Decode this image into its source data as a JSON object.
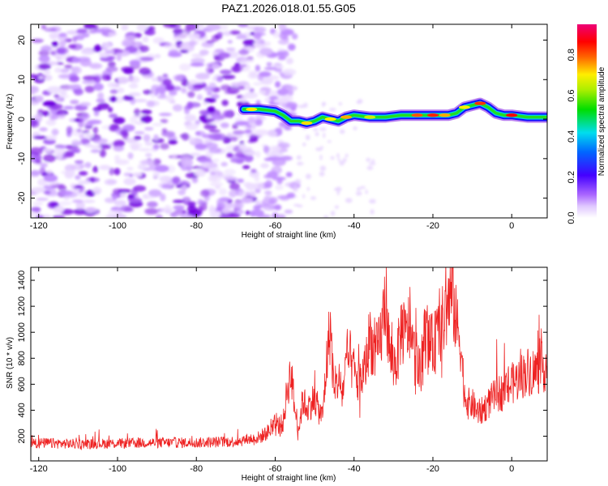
{
  "chart_data": [
    {
      "type": "heatmap",
      "title": "PAZ1.2026.018.01.55.G05",
      "xlabel": "Height of straight line (km)",
      "ylabel": "Frequency (Hz)",
      "xlim": [
        -122,
        9
      ],
      "ylim": [
        -25,
        24
      ],
      "x_ticks": [
        -120,
        -100,
        -80,
        -60,
        -40,
        -20,
        0
      ],
      "y_ticks": [
        -20,
        -10,
        0,
        10,
        20
      ],
      "colorbar": {
        "label": "Normalized spectral amplitude",
        "range": [
          0,
          0.95
        ],
        "ticks": [
          0.0,
          0.2,
          0.4,
          0.6,
          0.8
        ],
        "colors": [
          "#ffffff",
          "#cc99ff",
          "#7700ee",
          "#0000ff",
          "#00ccff",
          "#00dd00",
          "#ffff00",
          "#ff6600",
          "#ff0000",
          "#ee0066"
        ]
      },
      "ridge_frequency": {
        "x": [
          -68,
          -64,
          -60,
          -58,
          -56,
          -54,
          -52,
          -50,
          -48,
          -46,
          -44,
          -42,
          -40,
          -36,
          -32,
          -28,
          -24,
          -20,
          -16,
          -14,
          -12,
          -10,
          -8,
          -6,
          -4,
          -2,
          0,
          4,
          9
        ],
        "freq_hz": [
          2.5,
          2.5,
          2.0,
          1.0,
          -0.5,
          -0.5,
          -1.0,
          -0.5,
          0.5,
          0.0,
          -0.5,
          0.5,
          1.0,
          0.5,
          0.5,
          1.0,
          1.0,
          1.0,
          1.0,
          1.5,
          3.0,
          3.5,
          4.0,
          3.0,
          1.5,
          1.0,
          1.0,
          0.5,
          0.5
        ]
      },
      "noise_region_x": [
        -122,
        -55
      ]
    },
    {
      "type": "line",
      "xlabel": "Height of straight line (km)",
      "ylabel": "SNR (10 * v/v)",
      "xlim": [
        -122,
        9
      ],
      "ylim": [
        10,
        1500
      ],
      "x_ticks": [
        -120,
        -100,
        -80,
        -60,
        -40,
        -20,
        0
      ],
      "y_ticks": [
        200,
        400,
        600,
        800,
        1000,
        1200,
        1400
      ],
      "series": [
        {
          "name": "SNR",
          "color": "#ee2222",
          "x": [
            -122,
            -110,
            -100,
            -90,
            -80,
            -70,
            -64,
            -62,
            -60,
            -58,
            -57,
            -56,
            -55,
            -54,
            -53,
            -52,
            -51,
            -50,
            -49,
            -48,
            -47,
            -46,
            -45,
            -44,
            -43,
            -42,
            -41,
            -40,
            -39,
            -38,
            -37,
            -36,
            -35,
            -34,
            -33,
            -32,
            -31,
            -30,
            -29,
            -28,
            -27,
            -26,
            -25,
            -24,
            -23,
            -22,
            -21,
            -20,
            -19,
            -18,
            -17,
            -16,
            -15,
            -14,
            -13,
            -12,
            -11,
            -10,
            -9,
            -8,
            -6,
            -4,
            -2,
            0,
            2,
            4,
            6,
            9
          ],
          "values": [
            150,
            140,
            145,
            150,
            150,
            160,
            190,
            230,
            270,
            300,
            550,
            700,
            400,
            260,
            480,
            420,
            450,
            500,
            400,
            350,
            750,
            1050,
            500,
            650,
            520,
            750,
            800,
            700,
            600,
            650,
            750,
            980,
            850,
            850,
            1000,
            1300,
            850,
            750,
            800,
            1050,
            950,
            1050,
            850,
            750,
            650,
            1000,
            900,
            900,
            950,
            1050,
            1100,
            1250,
            1300,
            1050,
            950,
            520,
            450,
            450,
            400,
            380,
            450,
            520,
            550,
            600,
            650,
            700,
            700,
            750
          ]
        }
      ]
    }
  ]
}
